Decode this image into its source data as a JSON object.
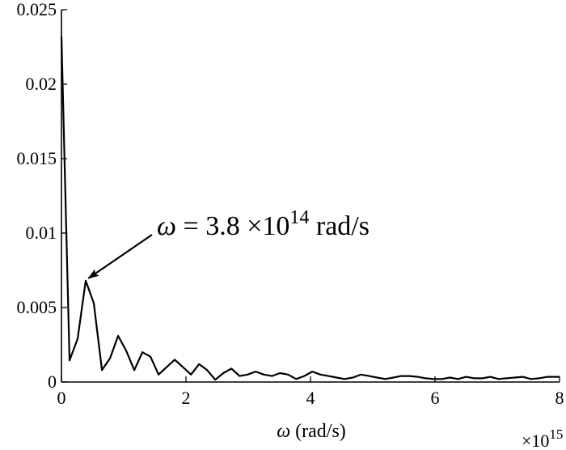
{
  "chart_data": {
    "type": "line",
    "title": "",
    "xlabel": {
      "symbol": "ω",
      "text": " (rad/s)"
    },
    "ylabel": "",
    "x_multiplier": {
      "base": "×10",
      "exponent": "15"
    },
    "xlim": [
      0,
      8
    ],
    "ylim": [
      0,
      0.025
    ],
    "x_ticks": [
      0,
      2,
      4,
      6,
      8
    ],
    "x_tick_labels": [
      "0",
      "2",
      "4",
      "6",
      "8"
    ],
    "y_ticks": [
      0,
      0.005,
      0.01,
      0.015,
      0.02,
      0.025
    ],
    "y_tick_labels": [
      "0",
      "0.005",
      "0.01",
      "0.015",
      "0.02",
      "0.025"
    ],
    "grid": false,
    "series": [
      {
        "color": "#000000",
        "x": [
          0,
          0.13,
          0.26,
          0.39,
          0.52,
          0.65,
          0.78,
          0.91,
          1.04,
          1.17,
          1.3,
          1.43,
          1.56,
          1.69,
          1.82,
          1.95,
          2.08,
          2.21,
          2.34,
          2.47,
          2.6,
          2.73,
          2.86,
          2.99,
          3.12,
          3.25,
          3.38,
          3.51,
          3.64,
          3.77,
          3.9,
          4.03,
          4.16,
          4.29,
          4.42,
          4.55,
          4.68,
          4.81,
          4.94,
          5.07,
          5.2,
          5.33,
          5.46,
          5.59,
          5.72,
          5.85,
          5.98,
          6.11,
          6.24,
          6.37,
          6.5,
          6.63,
          6.76,
          6.89,
          7.02,
          7.15,
          7.28,
          7.41,
          7.54,
          7.67,
          7.8,
          8.0
        ],
        "y": [
          0.0232,
          0.00145,
          0.0029,
          0.0068,
          0.0053,
          0.0008,
          0.0016,
          0.0031,
          0.0021,
          0.0008,
          0.002,
          0.0017,
          0.0005,
          0.001,
          0.0015,
          0.001,
          0.0005,
          0.0012,
          0.0008,
          0.00015,
          0.0006,
          0.0009,
          0.0004,
          0.0005,
          0.0007,
          0.0005,
          0.0004,
          0.0006,
          0.0005,
          0.0002,
          0.0004,
          0.0007,
          0.0005,
          0.0004,
          0.0003,
          0.0002,
          0.0003,
          0.0005,
          0.0004,
          0.0003,
          0.0002,
          0.0003,
          0.0004,
          0.0004,
          0.00035,
          0.00025,
          0.0002,
          0.0002,
          0.0003,
          0.0002,
          0.00035,
          0.00025,
          0.00025,
          0.00035,
          0.0002,
          0.00025,
          0.0003,
          0.00035,
          0.0002,
          0.00025,
          0.00035,
          0.00035
        ]
      }
    ],
    "annotation": {
      "symbol": "ω",
      "text_main": " = 3.8 ×10",
      "exponent": "14",
      "unit": " rad/s",
      "arrow_target": {
        "x": 0.38,
        "y": 0.0068
      }
    }
  }
}
